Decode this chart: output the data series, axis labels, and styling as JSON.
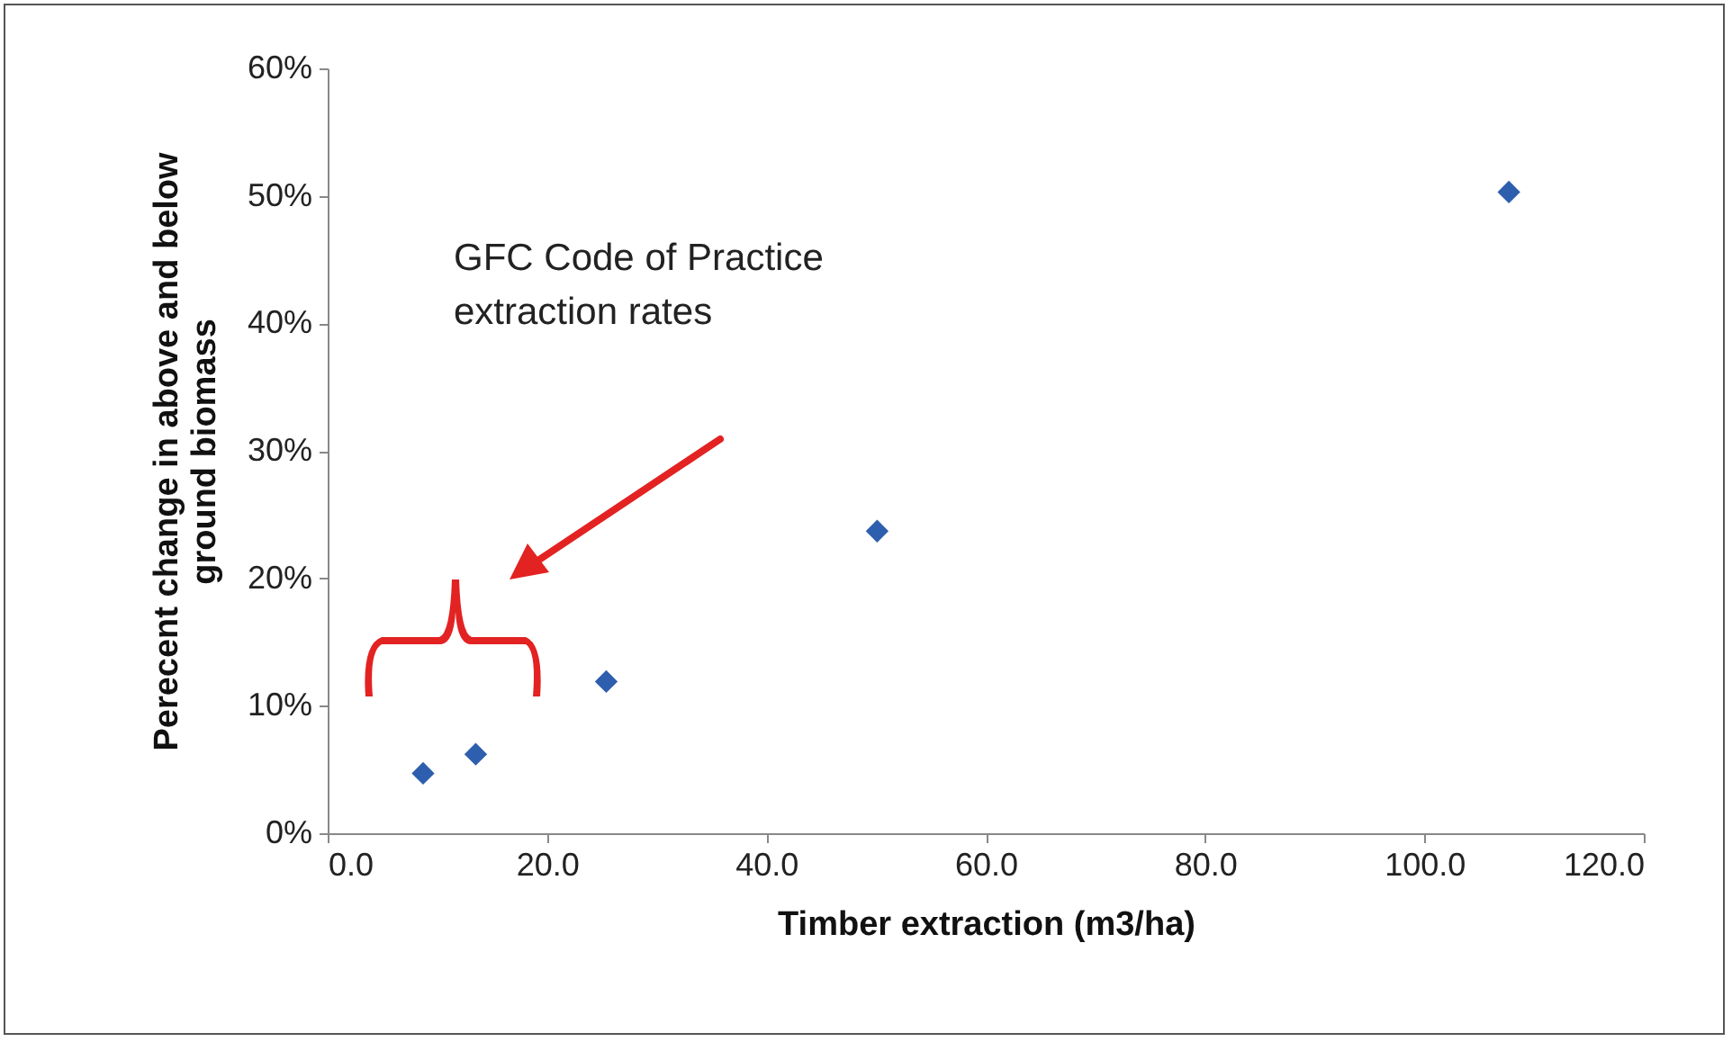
{
  "chart_data": {
    "type": "scatter",
    "xlabel": "Timber extraction (m3/ha)",
    "ylabel": "Perecent change in above and below\nground biomass",
    "x": [
      8.7,
      13.5,
      25.4,
      50.1,
      107.7
    ],
    "series": [
      {
        "color": "#2e5fae",
        "values": [
          4.7,
          6.2,
          11.9,
          23.7,
          50.3
        ]
      }
    ],
    "marker": "diamond",
    "xlim": [
      0,
      120
    ],
    "xticks": [
      {
        "value": 0,
        "label": "0.0"
      },
      {
        "value": 20,
        "label": "20.0"
      },
      {
        "value": 40,
        "label": "40.0"
      },
      {
        "value": 60,
        "label": "60.0"
      },
      {
        "value": 80,
        "label": "80.0"
      },
      {
        "value": 100,
        "label": "100.0"
      },
      {
        "value": 120,
        "label": "120.0"
      }
    ],
    "ylim": [
      0,
      60
    ],
    "yticks": [
      {
        "value": 0,
        "label": "0%"
      },
      {
        "value": 10,
        "label": "10%"
      },
      {
        "value": 20,
        "label": "20%"
      },
      {
        "value": 30,
        "label": "30%"
      },
      {
        "value": 40,
        "label": "40%"
      },
      {
        "value": 50,
        "label": "50%"
      },
      {
        "value": 60,
        "label": "60%"
      }
    ],
    "annotations": [
      "GFC Code of Practice\nextraction rates"
    ],
    "grid": false,
    "legend": false
  }
}
